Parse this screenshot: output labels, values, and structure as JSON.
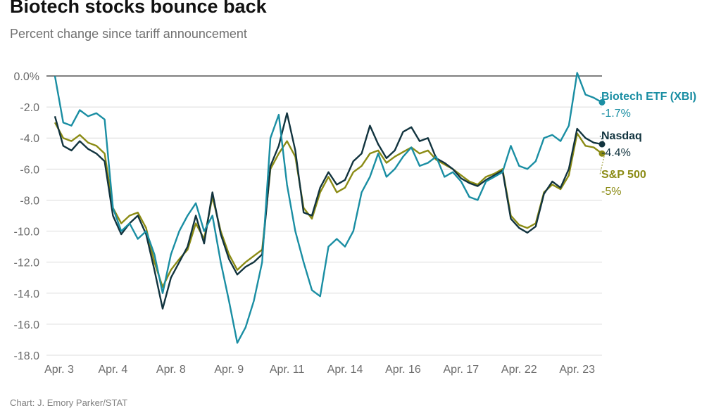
{
  "title": "Biotech stocks bounce back",
  "subtitle": "Percent change since tariff announcement",
  "source": "Chart: J. Emory Parker/STAT",
  "chart_data": {
    "type": "line",
    "title": "Biotech stocks bounce back",
    "subtitle": "Percent change since tariff announcement",
    "xlabel": "",
    "ylabel": "",
    "ylim": [
      -18,
      0.5
    ],
    "yticks": [
      "0.0%",
      "-2.0",
      "-4.0",
      "-6.0",
      "-8.0",
      "-10.0",
      "-12.0",
      "-14.0",
      "-16.0",
      "-18.0"
    ],
    "ytick_values": [
      0,
      -2,
      -4,
      -6,
      -8,
      -10,
      -12,
      -14,
      -16,
      -18
    ],
    "x_tick_labels": [
      "Apr. 3",
      "Apr. 4",
      "Apr. 8",
      "Apr. 9",
      "Apr. 11",
      "Apr. 14",
      "Apr. 16",
      "Apr. 17",
      "Apr. 22",
      "Apr. 23"
    ],
    "x_tick_index": [
      0,
      7,
      14,
      21,
      28,
      35,
      42,
      49,
      56,
      63
    ],
    "grid": true,
    "legend": "end-labels",
    "series": [
      {
        "name": "S&P 500",
        "end_label": "-5%",
        "color": "#8b8b14",
        "values": [
          -3.0,
          -4.0,
          -4.2,
          -3.8,
          -4.3,
          -4.5,
          -5.0,
          -8.5,
          -9.5,
          -9.0,
          -8.8,
          -9.8,
          -12.0,
          -13.6,
          -12.5,
          -11.8,
          -11.2,
          -9.5,
          -10.5,
          -7.8,
          -10.0,
          -11.5,
          -12.5,
          -12.0,
          -11.6,
          -11.2,
          -6.0,
          -5.0,
          -4.2,
          -5.2,
          -8.5,
          -9.2,
          -7.5,
          -6.5,
          -7.5,
          -7.2,
          -6.2,
          -5.8,
          -5.0,
          -4.8,
          -5.6,
          -5.2,
          -4.9,
          -4.6,
          -5.0,
          -4.8,
          -5.4,
          -5.7,
          -6.0,
          -6.4,
          -6.8,
          -7.0,
          -6.5,
          -6.3,
          -6.0,
          -9.0,
          -9.6,
          -9.8,
          -9.5,
          -7.5,
          -7.0,
          -7.3,
          -6.4,
          -3.7,
          -4.5,
          -4.6,
          -5.0
        ]
      },
      {
        "name": "Nasdaq",
        "end_label": "-4.4%",
        "color": "#12343f",
        "values": [
          -2.6,
          -4.5,
          -4.8,
          -4.2,
          -4.7,
          -5.0,
          -5.5,
          -9.0,
          -10.2,
          -9.5,
          -9.0,
          -10.2,
          -12.5,
          -15.0,
          -13.0,
          -12.0,
          -11.0,
          -9.0,
          -10.8,
          -7.5,
          -10.2,
          -11.8,
          -12.8,
          -12.3,
          -12.0,
          -11.5,
          -5.8,
          -4.5,
          -2.4,
          -4.8,
          -8.8,
          -9.0,
          -7.2,
          -6.2,
          -7.0,
          -6.7,
          -5.5,
          -5.0,
          -3.2,
          -4.4,
          -5.3,
          -4.8,
          -3.6,
          -3.3,
          -4.2,
          -4.0,
          -5.3,
          -5.6,
          -6.0,
          -6.6,
          -6.9,
          -7.1,
          -6.7,
          -6.4,
          -6.1,
          -9.2,
          -9.8,
          -10.1,
          -9.7,
          -7.6,
          -6.8,
          -7.2,
          -6.0,
          -3.4,
          -4.0,
          -4.3,
          -4.4
        ]
      },
      {
        "name": "Biotech ETF (XBI)",
        "end_label": "-1.7%",
        "color": "#1a8ea3",
        "values": [
          0.0,
          -3.0,
          -3.2,
          -2.2,
          -2.6,
          -2.4,
          -2.8,
          -8.5,
          -10.0,
          -9.5,
          -10.5,
          -10.0,
          -11.5,
          -14.0,
          -11.5,
          -10.0,
          -9.0,
          -8.2,
          -10.0,
          -9.0,
          -12.0,
          -14.5,
          -17.2,
          -16.2,
          -14.5,
          -12.0,
          -4.0,
          -2.5,
          -7.0,
          -10.0,
          -12.0,
          -13.8,
          -14.2,
          -11.0,
          -10.5,
          -11.0,
          -10.0,
          -7.5,
          -6.5,
          -5.0,
          -6.5,
          -6.0,
          -5.2,
          -4.6,
          -5.8,
          -5.6,
          -5.2,
          -6.5,
          -6.2,
          -6.8,
          -7.8,
          -8.0,
          -6.8,
          -6.5,
          -6.2,
          -4.5,
          -5.8,
          -6.0,
          -5.5,
          -4.0,
          -3.8,
          -4.2,
          -3.2,
          0.2,
          -1.2,
          -1.4,
          -1.7
        ]
      }
    ]
  }
}
